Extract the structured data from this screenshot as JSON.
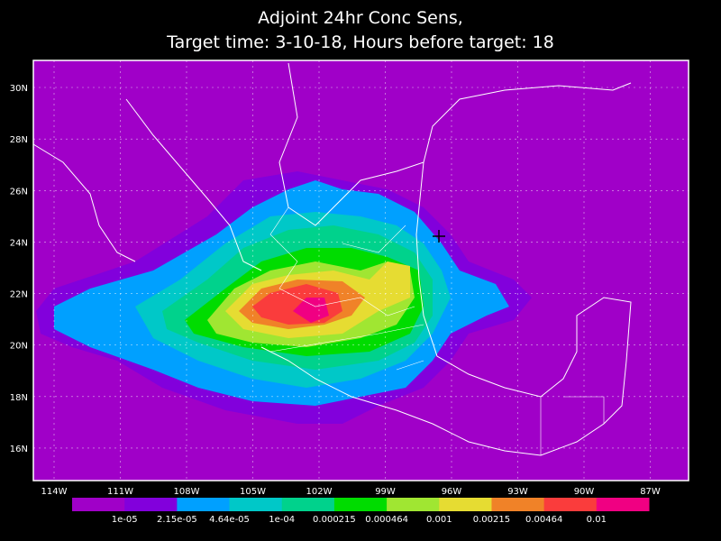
{
  "title": [
    "Adjoint 24hr Conc Sens,",
    "Target time: 3-10-18, Hours before target: 18"
  ],
  "lat_labels": [
    "30N",
    "28N",
    "26N",
    "24N",
    "22N",
    "20N",
    "18N",
    "16N"
  ],
  "lon_labels": [
    "114W",
    "111W",
    "108W",
    "105W",
    "102W",
    "99W",
    "96W",
    "93W",
    "90W",
    "87W"
  ],
  "colorbar": {
    "labels": [
      "1e-05",
      "2.15e-05",
      "4.64e-05",
      "1e-04",
      "0.000215",
      "0.000464",
      "0.001",
      "0.00215",
      "0.00464",
      "0.01"
    ],
    "colors": [
      "#a000c8",
      "#8200dc",
      "#00a0ff",
      "#00c8c8",
      "#00d28c",
      "#00dc00",
      "#a0e632",
      "#e6dc32",
      "#f08228",
      "#fa3c3c",
      "#f00082"
    ]
  }
}
